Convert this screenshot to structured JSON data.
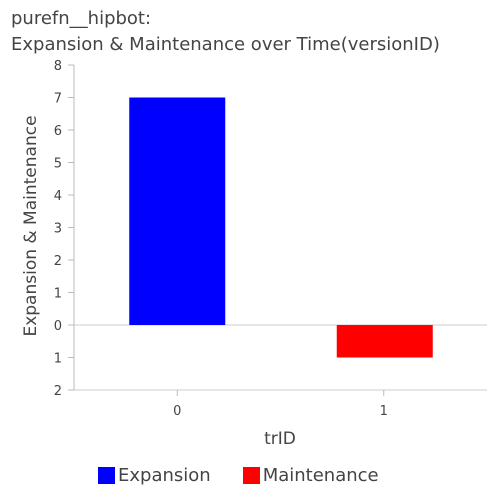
{
  "title": {
    "line1": "purefn__hipbot:",
    "line2": "Expansion & Maintenance over Time(versionID)"
  },
  "chart_data": {
    "type": "bar",
    "xlabel": "trID",
    "ylabel": "Expansion & Maintenance",
    "categories": [
      "0",
      "1"
    ],
    "series": [
      {
        "name": "Expansion",
        "color": "#0000ff",
        "values": [
          7,
          0
        ]
      },
      {
        "name": "Maintenance",
        "color": "#ff0000",
        "values": [
          0,
          -1
        ]
      }
    ],
    "ylim": [
      -2,
      8
    ],
    "y_ticks": [
      {
        "value": 8,
        "label": "8"
      },
      {
        "value": 7,
        "label": "7"
      },
      {
        "value": 6,
        "label": "6"
      },
      {
        "value": 5,
        "label": "5"
      },
      {
        "value": 4,
        "label": "4"
      },
      {
        "value": 3,
        "label": "3"
      },
      {
        "value": 2,
        "label": "2"
      },
      {
        "value": 1,
        "label": "1"
      },
      {
        "value": 0,
        "label": "0"
      },
      {
        "value": -1,
        "label": "1"
      },
      {
        "value": -2,
        "label": "2"
      }
    ],
    "grid": false,
    "legend_position": "bottom"
  }
}
